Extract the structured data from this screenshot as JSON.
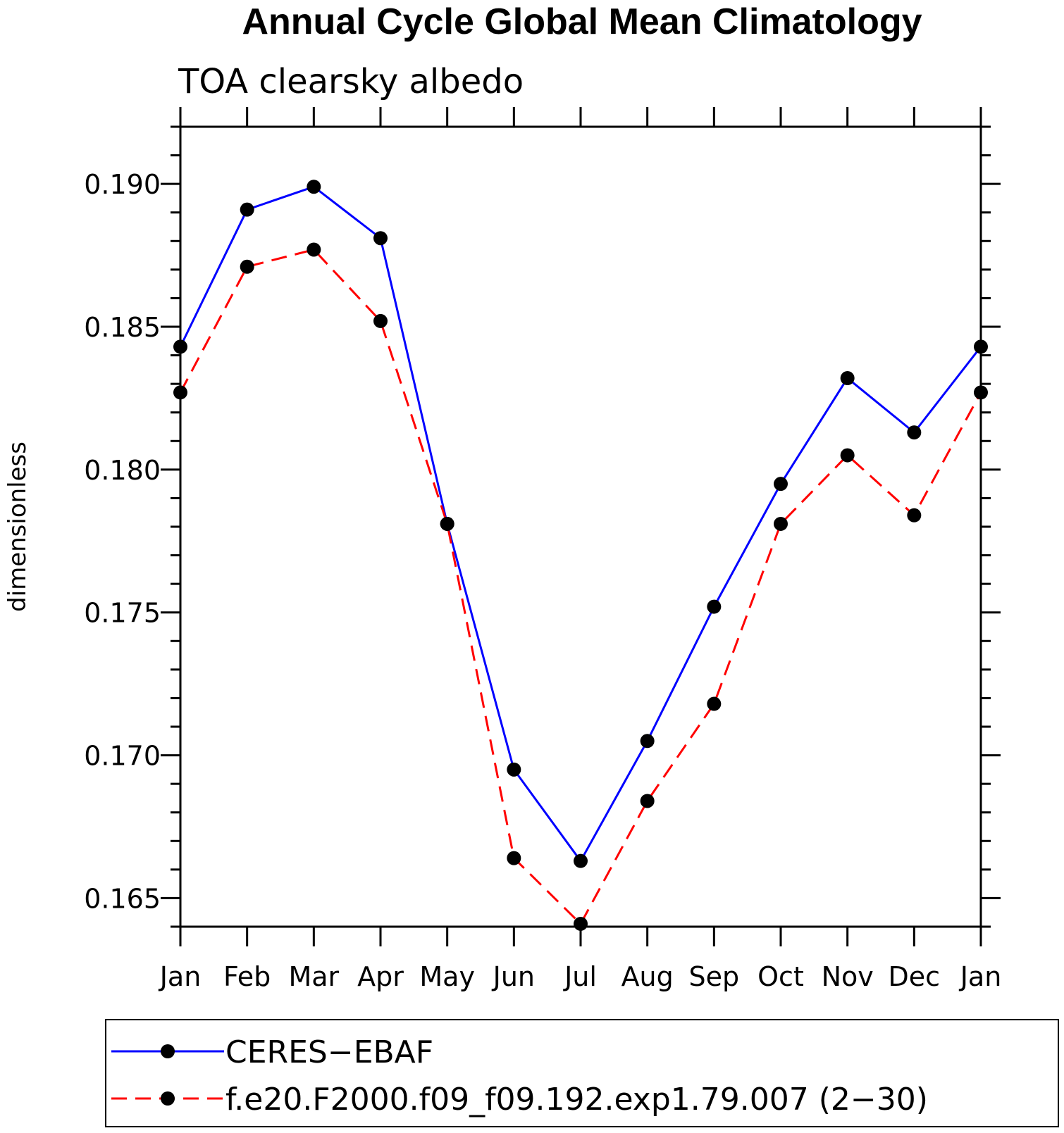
{
  "chart_data": {
    "type": "line",
    "title": "Annual Cycle Global Mean Climatology",
    "subtitle": "TOA clearsky albedo",
    "xlabel": "",
    "ylabel": "dimensionless",
    "categories": [
      "Jan",
      "Feb",
      "Mar",
      "Apr",
      "May",
      "Jun",
      "Jul",
      "Aug",
      "Sep",
      "Oct",
      "Nov",
      "Dec",
      "Jan"
    ],
    "ylim": [
      0.164,
      0.192
    ],
    "yticks": [
      0.165,
      0.17,
      0.175,
      0.18,
      0.185,
      0.19
    ],
    "ytick_labels": [
      "0.165",
      "0.170",
      "0.175",
      "0.180",
      "0.185",
      "0.190"
    ],
    "series": [
      {
        "name": "CERES−EBAF",
        "color": "#0000ff",
        "dash": "solid",
        "values": [
          0.1843,
          0.1891,
          0.1899,
          0.1881,
          0.1781,
          0.1695,
          0.1663,
          0.1705,
          0.1752,
          0.1795,
          0.1832,
          0.1813,
          0.1843
        ]
      },
      {
        "name": "f.e20.F2000.f09_f09.192.exp1.79.007 (2−30)",
        "color": "#ff0000",
        "dash": "dashed",
        "values": [
          0.1827,
          0.1871,
          0.1877,
          0.1852,
          0.1781,
          0.1664,
          0.1641,
          0.1684,
          0.1718,
          0.1781,
          0.1805,
          0.1784,
          0.1827
        ]
      }
    ],
    "legend": {
      "placement": "bottom"
    },
    "grid": false
  }
}
